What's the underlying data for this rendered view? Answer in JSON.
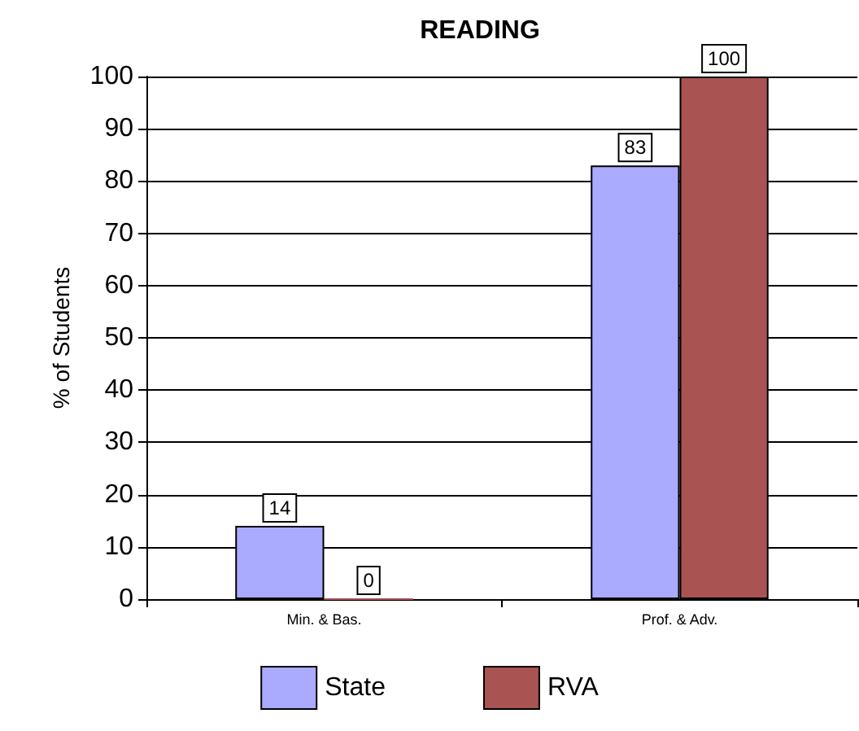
{
  "chart_data": {
    "type": "bar",
    "title": "READING",
    "ylabel": "% of Students",
    "categories": [
      "Min. & Bas.",
      "Prof. & Adv."
    ],
    "series": [
      {
        "name": "State",
        "color": "#aaaaff",
        "values": [
          14,
          83
        ]
      },
      {
        "name": "RVA",
        "color": "#a95353",
        "values": [
          0,
          100
        ]
      }
    ],
    "ylim": [
      0,
      100
    ],
    "yticks": [
      0,
      10,
      20,
      30,
      40,
      50,
      60,
      70,
      80,
      90,
      100
    ],
    "grid": "y",
    "legend": "bottom",
    "data_labels": true
  }
}
